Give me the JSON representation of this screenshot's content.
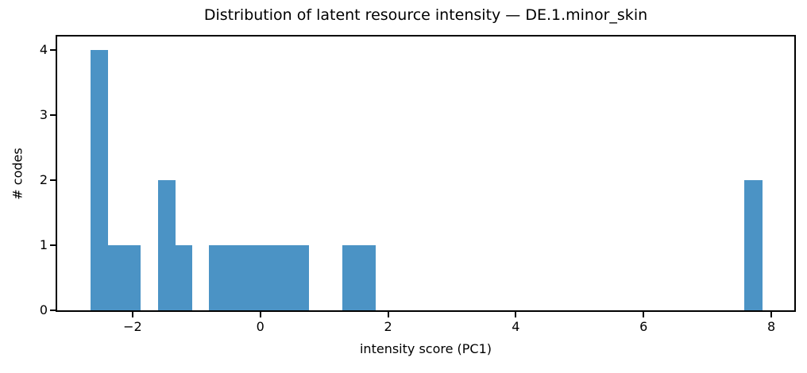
{
  "chart_data": {
    "type": "bar",
    "subtype": "histogram",
    "title": "Distribution of latent resource intensity — DE.1.minor_skin",
    "xlabel": "intensity score (PC1)",
    "ylabel": "# codes",
    "xlim": [
      -3.18,
      8.36
    ],
    "ylim": [
      0,
      4.21
    ],
    "x_ticks": [
      -2,
      0,
      2,
      4,
      6,
      8
    ],
    "x_tick_labels": [
      "−2",
      "0",
      "2",
      "4",
      "6",
      "8"
    ],
    "y_ticks": [
      0,
      1,
      2,
      3,
      4
    ],
    "y_tick_labels": [
      "0",
      "1",
      "2",
      "3",
      "4"
    ],
    "bar_color": "#4b93c5",
    "axis_color": "#000000",
    "background_color": "#ffffff",
    "grid": false,
    "legend": null,
    "bin_width_approx": 0.26,
    "bars": [
      {
        "x0": -2.66,
        "x1": -2.38,
        "count": 4
      },
      {
        "x0": -2.38,
        "x1": -1.87,
        "count": 1
      },
      {
        "x0": -1.6,
        "x1": -1.33,
        "count": 2
      },
      {
        "x0": -1.33,
        "x1": -1.06,
        "count": 1
      },
      {
        "x0": -0.81,
        "x1": 0.76,
        "count": 1
      },
      {
        "x0": 1.28,
        "x1": 1.81,
        "count": 1
      },
      {
        "x0": 7.58,
        "x1": 7.86,
        "count": 2
      }
    ]
  }
}
